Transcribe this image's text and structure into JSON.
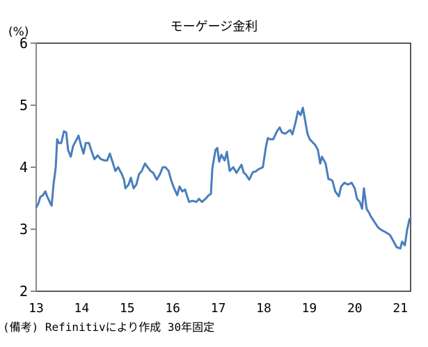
{
  "chart_data": {
    "type": "line",
    "title": "モーゲージ金利",
    "ylabel": "(%)",
    "note": "(備考) Refinitivにより作成 30年固定",
    "ylim": [
      2,
      6
    ],
    "yticks": [
      "2",
      "3",
      "4",
      "5",
      "6"
    ],
    "xlim": [
      13,
      21.24
    ],
    "xticks": [
      "13",
      "14",
      "15",
      "16",
      "17",
      "18",
      "19",
      "20",
      "21"
    ],
    "grid": false,
    "line_color": "#4a7ebb",
    "series": [
      {
        "points": [
          [
            13.0,
            3.35
          ],
          [
            13.05,
            3.42
          ],
          [
            13.09,
            3.52
          ],
          [
            13.15,
            3.55
          ],
          [
            13.2,
            3.61
          ],
          [
            13.24,
            3.53
          ],
          [
            13.31,
            3.42
          ],
          [
            13.34,
            3.38
          ],
          [
            13.38,
            3.72
          ],
          [
            13.43,
            4.0
          ],
          [
            13.46,
            4.45
          ],
          [
            13.5,
            4.39
          ],
          [
            13.55,
            4.39
          ],
          [
            13.61,
            4.58
          ],
          [
            13.66,
            4.56
          ],
          [
            13.7,
            4.28
          ],
          [
            13.76,
            4.17
          ],
          [
            13.81,
            4.34
          ],
          [
            13.89,
            4.45
          ],
          [
            13.93,
            4.51
          ],
          [
            13.99,
            4.34
          ],
          [
            14.04,
            4.22
          ],
          [
            14.09,
            4.39
          ],
          [
            14.16,
            4.39
          ],
          [
            14.22,
            4.25
          ],
          [
            14.28,
            4.13
          ],
          [
            14.35,
            4.19
          ],
          [
            14.42,
            4.13
          ],
          [
            14.5,
            4.11
          ],
          [
            14.56,
            4.11
          ],
          [
            14.62,
            4.22
          ],
          [
            14.68,
            4.08
          ],
          [
            14.74,
            3.94
          ],
          [
            14.8,
            4.0
          ],
          [
            14.88,
            3.89
          ],
          [
            14.93,
            3.8
          ],
          [
            14.96,
            3.66
          ],
          [
            15.03,
            3.72
          ],
          [
            15.08,
            3.83
          ],
          [
            15.14,
            3.66
          ],
          [
            15.2,
            3.72
          ],
          [
            15.26,
            3.89
          ],
          [
            15.32,
            3.94
          ],
          [
            15.39,
            4.06
          ],
          [
            15.45,
            4.0
          ],
          [
            15.51,
            3.94
          ],
          [
            15.57,
            3.91
          ],
          [
            15.65,
            3.8
          ],
          [
            15.72,
            3.89
          ],
          [
            15.78,
            4.0
          ],
          [
            15.84,
            4.0
          ],
          [
            15.91,
            3.94
          ],
          [
            15.97,
            3.78
          ],
          [
            16.03,
            3.66
          ],
          [
            16.1,
            3.55
          ],
          [
            16.15,
            3.69
          ],
          [
            16.21,
            3.61
          ],
          [
            16.27,
            3.64
          ],
          [
            16.3,
            3.57
          ],
          [
            16.36,
            3.44
          ],
          [
            16.43,
            3.46
          ],
          [
            16.52,
            3.44
          ],
          [
            16.58,
            3.49
          ],
          [
            16.64,
            3.44
          ],
          [
            16.72,
            3.49
          ],
          [
            16.79,
            3.55
          ],
          [
            16.84,
            3.57
          ],
          [
            16.87,
            3.98
          ],
          [
            16.94,
            4.28
          ],
          [
            16.98,
            4.31
          ],
          [
            17.02,
            4.09
          ],
          [
            17.07,
            4.2
          ],
          [
            17.14,
            4.11
          ],
          [
            17.19,
            4.25
          ],
          [
            17.25,
            3.94
          ],
          [
            17.33,
            4.0
          ],
          [
            17.4,
            3.91
          ],
          [
            17.51,
            4.04
          ],
          [
            17.56,
            3.91
          ],
          [
            17.6,
            3.89
          ],
          [
            17.68,
            3.8
          ],
          [
            17.76,
            3.92
          ],
          [
            17.82,
            3.93
          ],
          [
            17.89,
            3.97
          ],
          [
            17.98,
            4.0
          ],
          [
            18.05,
            4.34
          ],
          [
            18.09,
            4.47
          ],
          [
            18.14,
            4.45
          ],
          [
            18.21,
            4.45
          ],
          [
            18.29,
            4.58
          ],
          [
            18.35,
            4.64
          ],
          [
            18.4,
            4.56
          ],
          [
            18.47,
            4.54
          ],
          [
            18.58,
            4.6
          ],
          [
            18.63,
            4.53
          ],
          [
            18.7,
            4.73
          ],
          [
            18.75,
            4.9
          ],
          [
            18.81,
            4.84
          ],
          [
            18.86,
            4.96
          ],
          [
            18.9,
            4.79
          ],
          [
            18.96,
            4.54
          ],
          [
            19.01,
            4.45
          ],
          [
            19.09,
            4.39
          ],
          [
            19.13,
            4.36
          ],
          [
            19.19,
            4.28
          ],
          [
            19.24,
            4.06
          ],
          [
            19.28,
            4.17
          ],
          [
            19.36,
            4.06
          ],
          [
            19.42,
            3.81
          ],
          [
            19.47,
            3.8
          ],
          [
            19.51,
            3.78
          ],
          [
            19.57,
            3.61
          ],
          [
            19.65,
            3.53
          ],
          [
            19.7,
            3.69
          ],
          [
            19.77,
            3.75
          ],
          [
            19.85,
            3.72
          ],
          [
            19.93,
            3.75
          ],
          [
            20.0,
            3.66
          ],
          [
            20.05,
            3.49
          ],
          [
            20.11,
            3.44
          ],
          [
            20.16,
            3.33
          ],
          [
            20.2,
            3.66
          ],
          [
            20.26,
            3.33
          ],
          [
            20.31,
            3.27
          ],
          [
            20.35,
            3.21
          ],
          [
            20.43,
            3.12
          ],
          [
            20.51,
            3.03
          ],
          [
            20.58,
            2.99
          ],
          [
            20.66,
            2.96
          ],
          [
            20.77,
            2.91
          ],
          [
            20.84,
            2.82
          ],
          [
            20.92,
            2.71
          ],
          [
            21.0,
            2.69
          ],
          [
            21.04,
            2.8
          ],
          [
            21.1,
            2.74
          ],
          [
            21.15,
            2.99
          ],
          [
            21.2,
            3.16
          ],
          [
            21.24,
            3.19
          ]
        ]
      }
    ]
  }
}
